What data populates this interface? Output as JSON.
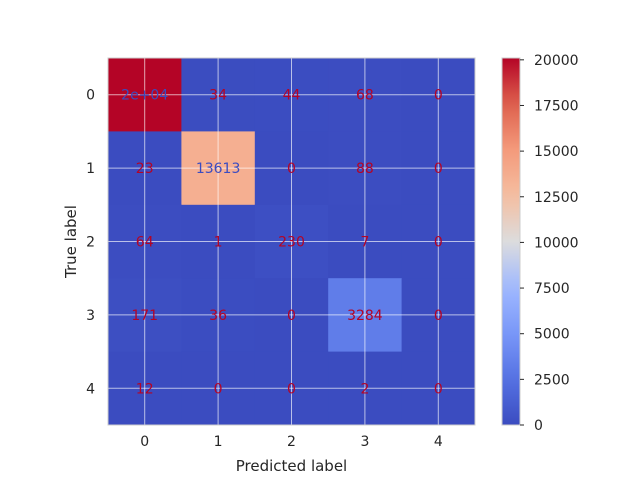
{
  "chart_data": {
    "type": "heatmap",
    "title": "",
    "xlabel": "Predicted label",
    "ylabel": "True label",
    "x_categories": [
      "0",
      "1",
      "2",
      "3",
      "4"
    ],
    "y_categories": [
      "0",
      "1",
      "2",
      "3",
      "4"
    ],
    "values": [
      [
        20100,
        34,
        44,
        68,
        0
      ],
      [
        23,
        13613,
        0,
        88,
        0
      ],
      [
        64,
        1,
        230,
        7,
        0
      ],
      [
        171,
        36,
        0,
        3284,
        0
      ],
      [
        12,
        0,
        0,
        2,
        0
      ]
    ],
    "cell_labels": [
      [
        "2e+04",
        "34",
        "44",
        "68",
        "0"
      ],
      [
        "23",
        "13613",
        "0",
        "88",
        "0"
      ],
      [
        "64",
        "1",
        "230",
        "7",
        "0"
      ],
      [
        "171",
        "36",
        "0",
        "3284",
        "0"
      ],
      [
        "12",
        "0",
        "0",
        "2",
        "0"
      ]
    ],
    "colormap": "coolwarm",
    "label_color_on_dark_cell": "#b40426",
    "label_color_on_light_cell": "#3b4cc0",
    "vmin": 0,
    "vmax": 20100,
    "colorbar_ticks": [
      0,
      2500,
      5000,
      7500,
      10000,
      12500,
      15000,
      17500,
      20000
    ],
    "grid": true,
    "legend": "colorbar-right"
  }
}
